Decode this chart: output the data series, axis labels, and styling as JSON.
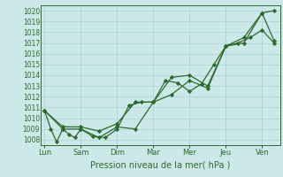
{
  "xlabel": "Pression niveau de la mer( hPa )",
  "background_color": "#cce8e8",
  "grid_color": "#b0d4d4",
  "line_color": "#2d6a2d",
  "marker_color": "#2d6a2d",
  "ylim": [
    1007.5,
    1020.5
  ],
  "yticks": [
    1008,
    1009,
    1010,
    1011,
    1012,
    1013,
    1014,
    1015,
    1016,
    1017,
    1018,
    1019,
    1020
  ],
  "day_labels": [
    "Lun",
    "Sam",
    "Dim",
    "Mar",
    "Mer",
    "Jeu",
    "Ven"
  ],
  "day_positions": [
    0,
    1,
    2,
    3,
    4,
    5,
    6
  ],
  "xlim": [
    -0.1,
    6.5
  ],
  "line1_x": [
    0.0,
    0.17,
    0.33,
    0.5,
    0.67,
    0.83,
    1.0,
    1.33,
    1.67,
    2.0,
    2.33,
    2.67,
    3.0,
    3.33,
    3.67,
    4.0,
    4.33,
    4.67,
    5.0,
    5.33,
    5.67,
    6.0,
    6.33
  ],
  "line1_y": [
    1010.7,
    1009.0,
    1007.8,
    1009.0,
    1008.5,
    1008.2,
    1009.0,
    1008.3,
    1008.2,
    1009.0,
    1011.2,
    1011.5,
    1011.5,
    1013.5,
    1013.3,
    1012.5,
    1013.2,
    1015.0,
    1016.7,
    1017.0,
    1017.5,
    1018.2,
    1017.0
  ],
  "line2_x": [
    0.0,
    0.5,
    1.0,
    1.5,
    2.0,
    2.5,
    3.0,
    3.5,
    4.0,
    4.5,
    5.0,
    5.5,
    6.0,
    6.33
  ],
  "line2_y": [
    1010.7,
    1009.0,
    1009.0,
    1008.2,
    1009.2,
    1009.0,
    1011.5,
    1012.2,
    1013.5,
    1012.8,
    1016.7,
    1017.0,
    1019.8,
    1020.0
  ],
  "line3_x": [
    0.0,
    0.5,
    1.0,
    1.5,
    2.0,
    2.5,
    3.0,
    3.5,
    4.0,
    4.5,
    5.0,
    5.5,
    6.0,
    6.33
  ],
  "line3_y": [
    1010.7,
    1009.2,
    1009.2,
    1008.8,
    1009.5,
    1011.5,
    1011.5,
    1013.8,
    1014.0,
    1013.0,
    1016.7,
    1017.5,
    1019.8,
    1017.2
  ],
  "ytick_fontsize": 5.5,
  "xtick_fontsize": 6.0,
  "xlabel_fontsize": 7.0
}
